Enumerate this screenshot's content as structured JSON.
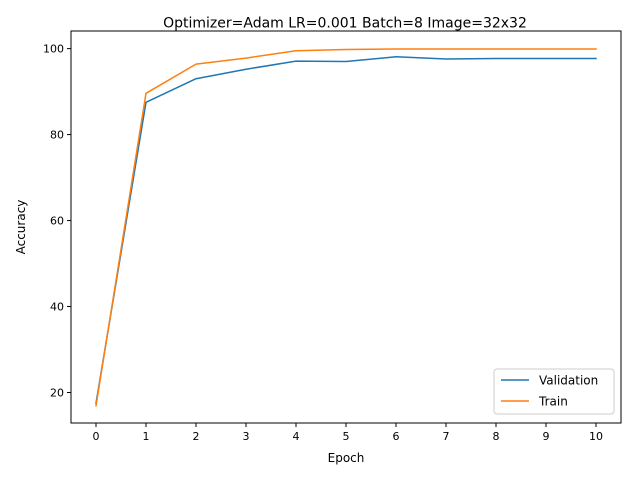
{
  "chart_data": {
    "type": "line",
    "title": "Optimizer=Adam LR=0.001 Batch=8 Image=32x32",
    "xlabel": "Epoch",
    "ylabel": "Accuracy",
    "x": [
      0,
      1,
      2,
      3,
      4,
      5,
      6,
      7,
      8,
      9,
      10
    ],
    "xticks": [
      "0",
      "1",
      "2",
      "3",
      "4",
      "5",
      "6",
      "7",
      "8",
      "9",
      "10"
    ],
    "yticks": [
      "20",
      "40",
      "60",
      "80",
      "100"
    ],
    "ytick_values": [
      20,
      40,
      60,
      80,
      100
    ],
    "xlim": [
      -0.5,
      10.5
    ],
    "ylim": [
      12.9,
      104.1
    ],
    "grid": false,
    "legend_position": "bottom-right",
    "series": [
      {
        "name": "Validation",
        "color": "#1f77b4",
        "values": [
          17.5,
          87.5,
          93.0,
          95.2,
          97.1,
          97.0,
          98.1,
          97.6,
          97.7,
          97.7,
          97.7
        ]
      },
      {
        "name": "Train",
        "color": "#ff7f0e",
        "values": [
          16.9,
          89.6,
          96.4,
          97.8,
          99.5,
          99.8,
          99.9,
          99.9,
          99.9,
          99.9,
          99.9
        ]
      }
    ]
  }
}
